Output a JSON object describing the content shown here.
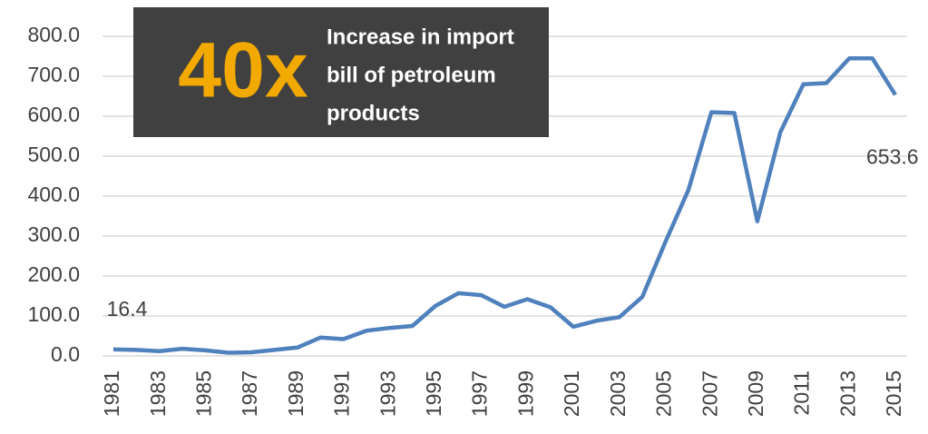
{
  "chart_data": {
    "type": "line",
    "categories": [
      1981,
      null,
      1983,
      null,
      1985,
      null,
      1987,
      null,
      1989,
      null,
      1991,
      null,
      1993,
      null,
      1995,
      null,
      1997,
      null,
      1999,
      null,
      2001,
      null,
      2003,
      null,
      2005,
      null,
      2007,
      null,
      2009,
      null,
      2011,
      null,
      2013,
      null,
      2015
    ],
    "series": [
      {
        "name": null,
        "color": "#4f81bd",
        "values": [
          16.4,
          15,
          12,
          18,
          14,
          8,
          9,
          15,
          21,
          46,
          42,
          63,
          70,
          75,
          125,
          157,
          152,
          123,
          142,
          122,
          73,
          88,
          97,
          148,
          285,
          415,
          610,
          608,
          337,
          560,
          680,
          683,
          745,
          745,
          653.6
        ],
        "value_labels": [
          "16.4",
          null,
          null,
          null,
          null,
          null,
          null,
          null,
          null,
          null,
          null,
          null,
          null,
          null,
          null,
          null,
          null,
          null,
          null,
          null,
          null,
          null,
          null,
          null,
          null,
          null,
          null,
          null,
          null,
          null,
          null,
          null,
          null,
          null,
          "653.6"
        ]
      }
    ],
    "ylim": [
      0,
      800
    ],
    "yticks": [
      {
        "value": 0,
        "label": "0.0"
      },
      {
        "value": 100,
        "label": "100.0"
      },
      {
        "value": 200,
        "label": "200.0"
      },
      {
        "value": 300,
        "label": "300.0"
      },
      {
        "value": 400,
        "label": "400.0"
      },
      {
        "value": 500,
        "label": "500.0"
      },
      {
        "value": 600,
        "label": "600.0"
      },
      {
        "value": 700,
        "label": "700.0"
      },
      {
        "value": 800,
        "label": "800.0"
      }
    ],
    "grid": true,
    "annotation": {
      "big": "40x",
      "text": [
        "Increase in import",
        "bill of petroleum",
        "products"
      ]
    }
  }
}
